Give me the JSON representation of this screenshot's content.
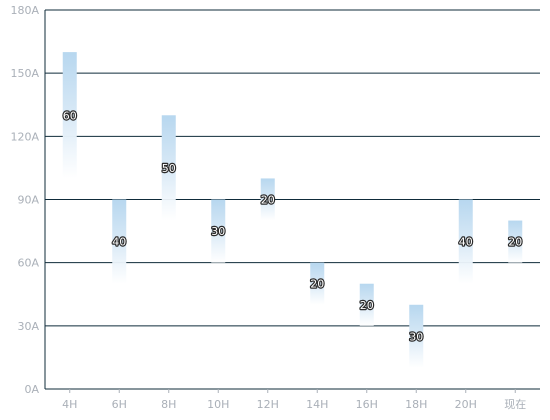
{
  "chart_data": {
    "type": "bar",
    "subtype": "floating-range",
    "categories": [
      "4H",
      "6H",
      "8H",
      "10H",
      "12H",
      "14H",
      "16H",
      "18H",
      "20H",
      "现在"
    ],
    "tops": [
      160,
      90,
      130,
      90,
      100,
      60,
      50,
      40,
      90,
      80
    ],
    "values": [
      60,
      40,
      50,
      30,
      20,
      20,
      20,
      30,
      40,
      20
    ],
    "data_labels": [
      "60",
      "40",
      "50",
      "30",
      "20",
      "20",
      "20",
      "30",
      "40",
      "20"
    ],
    "y_ticks": [
      "0A",
      "30A",
      "60A",
      "90A",
      "120A",
      "150A",
      "180A"
    ],
    "ylim": [
      0,
      180
    ],
    "grid": true,
    "bar_gradient": [
      "#b7d7ef",
      "#ffffff"
    ],
    "grid_color": "#0f2b3a",
    "tick_color": "#aab0b8"
  }
}
